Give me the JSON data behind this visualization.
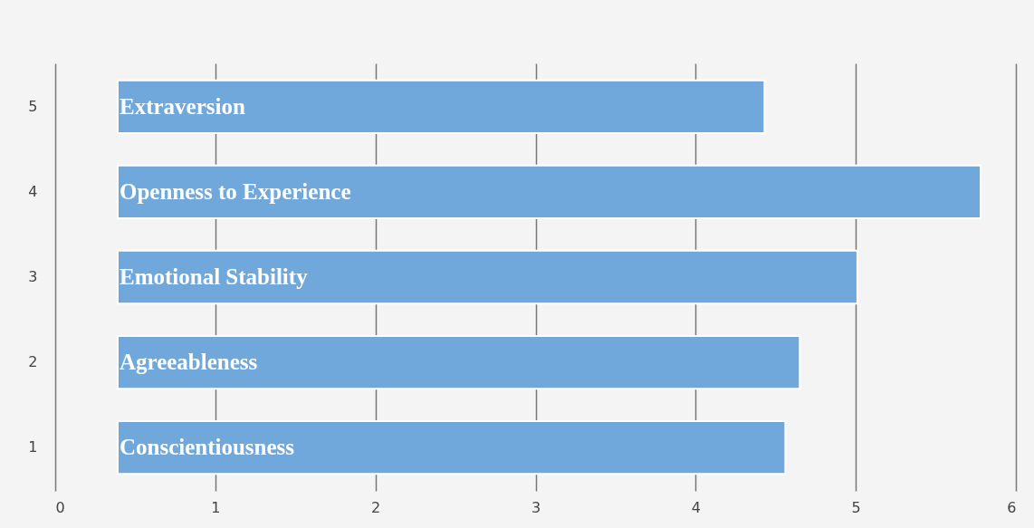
{
  "chart_data": {
    "type": "bar",
    "orientation": "horizontal",
    "categories": [
      "5",
      "4",
      "3",
      "2",
      "1"
    ],
    "base": [
      0.39,
      0.39,
      0.39,
      0.39,
      0.39
    ],
    "values": [
      4.04,
      5.39,
      4.62,
      4.26,
      4.17
    ],
    "color": "#70a8dc",
    "xlim": [
      0,
      6
    ],
    "xticks": [
      0,
      1,
      2,
      3,
      4,
      5,
      6
    ],
    "grid": "x",
    "annotations": [
      "Extraversion",
      "Openness to Experience",
      "Emotional Stability",
      "Agreeableness",
      "Conscientiousness"
    ]
  }
}
